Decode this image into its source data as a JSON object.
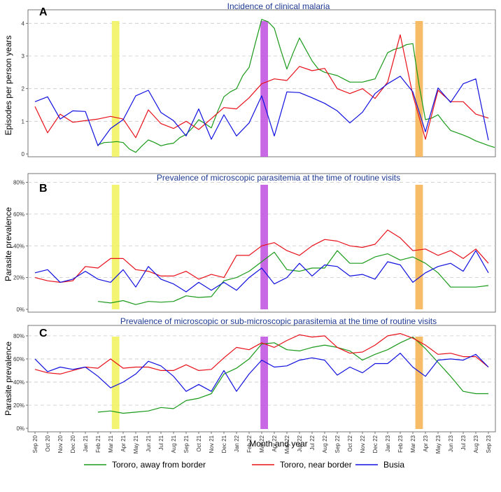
{
  "chart_data": {
    "type": "line",
    "xlabel": "Month and year",
    "months": [
      "Sep 20",
      "Oct 20",
      "Nov 20",
      "Dec 20",
      "Jan 21",
      "Feb 21",
      "Mar 21",
      "Apr 21",
      "May 21",
      "Jun 21",
      "Jul 21",
      "Aug 21",
      "Sep 21",
      "Oct 21",
      "Nov 21",
      "Dec 21",
      "Jan 22",
      "Feb 22",
      "Mar 22",
      "Apr 22",
      "May 22",
      "Jun 22",
      "Jul 22",
      "Aug 22",
      "Sep 22",
      "Oct 22",
      "Nov 22",
      "Dec 22",
      "Jan 23",
      "Feb 23",
      "Mar 23",
      "Apr 23",
      "May 23",
      "Jun 23",
      "Jul 23",
      "Aug 23",
      "Sep 23"
    ],
    "x_tick_labels": [
      "Sep 20",
      "Oct 20",
      "Nov 20",
      "Dec 20",
      "Jan 21",
      "Feb 21",
      "Mar 21",
      "Apr 21",
      "May 21",
      "Jun 21",
      "Jul 21",
      "Aug 21",
      "Sep 21",
      "Oct 21",
      "Nov 21",
      "Dec 21",
      "Jan 22",
      "Feb 22",
      "Mar 22",
      "Apr 22",
      "May 22",
      "Jun 22",
      "Jul 22",
      "Aug 22",
      "Sep 22",
      "Oct 22",
      "Nov 22",
      "Dec 22",
      "Jan 23",
      "Feb 23",
      "Mar 23",
      "Apr 23",
      "May 23",
      "Jun 23",
      "Jul 23",
      "Aug 23",
      "Sep 23"
    ],
    "legend": [
      {
        "name": "Tororo, away from border",
        "color": "#1a9a1a"
      },
      {
        "name": "Tororo, near border",
        "color": "#e8101a"
      },
      {
        "name": "Busia",
        "color": "#1010e0"
      }
    ],
    "highlights": [
      {
        "from": 6.1,
        "to": 6.7,
        "color": "#f2f25a"
      },
      {
        "from": 17.9,
        "to": 18.5,
        "color": "#c04ee0"
      },
      {
        "from": 30.2,
        "to": 30.8,
        "color": "#f5b04c"
      }
    ],
    "panels": [
      {
        "letter": "A",
        "title": "Incidence of clinical malaria",
        "ylabel": "Episodes per person years",
        "ylim": [
          0,
          4.2
        ],
        "yticks": [
          0,
          1,
          2,
          3,
          4
        ],
        "ytick_labels": [
          "0",
          "1",
          "2",
          "3",
          "4"
        ],
        "series": [
          {
            "name": "Tororo, away from border",
            "x": [
              5,
              5.5,
              6,
              6.5,
              7,
              7.5,
              8,
              8.5,
              9,
              9.5,
              10,
              10.5,
              11,
              11.5,
              12,
              12.5,
              13,
              13.5,
              14,
              14.5,
              15,
              15.5,
              16,
              16.5,
              17,
              17.5,
              18,
              18.5,
              19,
              19.5,
              20,
              20.5,
              21,
              21.5,
              22,
              22.5,
              23,
              23.5,
              24,
              24.5,
              25,
              25.5,
              26,
              26.5,
              27,
              27.5,
              28,
              28.5,
              29,
              29.5,
              30,
              30.5,
              31,
              31.5,
              32,
              32.5,
              33,
              33.5,
              34,
              34.5,
              35,
              35.5,
              36,
              36.5
            ],
            "values": [
              0.28,
              0.35,
              0.36,
              0.38,
              0.35,
              0.15,
              0.05,
              0.25,
              0.43,
              0.35,
              0.25,
              0.3,
              0.33,
              0.5,
              0.6,
              0.8,
              1.05,
              0.93,
              0.8,
              1.3,
              1.75,
              1.9,
              2.0,
              2.4,
              2.65,
              3.4,
              4.12,
              4.05,
              3.85,
              3.2,
              2.6,
              3.1,
              3.55,
              3.2,
              2.85,
              2.6,
              2.5,
              2.45,
              2.4,
              2.3,
              2.2,
              2.2,
              2.2,
              2.25,
              2.3,
              2.7,
              3.1,
              3.2,
              3.25,
              3.35,
              3.38,
              2.1,
              1.05,
              1.1,
              1.2,
              0.95,
              0.72,
              0.65,
              0.58,
              0.5,
              0.4,
              0.33,
              0.26,
              0.2
            ]
          },
          {
            "name": "Tororo, near border",
            "x": [
              0,
              1,
              2,
              3,
              4,
              5,
              6,
              7,
              8,
              9,
              10,
              11,
              12,
              13,
              14,
              15,
              16,
              17,
              18,
              19,
              20,
              21,
              22,
              23,
              24,
              25,
              26,
              27,
              28,
              29,
              30,
              31,
              32,
              33,
              34,
              35,
              36
            ],
            "values": [
              1.45,
              0.65,
              1.22,
              0.97,
              1.02,
              1.07,
              1.15,
              1.07,
              0.5,
              1.35,
              0.93,
              0.78,
              1.0,
              0.75,
              1.08,
              1.42,
              1.38,
              1.72,
              2.15,
              2.3,
              2.25,
              2.68,
              2.55,
              2.62,
              2.0,
              1.85,
              2.0,
              1.7,
              2.2,
              3.65,
              1.8,
              0.45,
              1.95,
              1.6,
              1.6,
              1.22,
              1.1
            ]
          },
          {
            "name": "Busia",
            "x": [
              0,
              1,
              2,
              3,
              4,
              5,
              6,
              7,
              8,
              9,
              10,
              11,
              12,
              13,
              14,
              15,
              16,
              17,
              18,
              19,
              20,
              21,
              22,
              23,
              24,
              25,
              26,
              27,
              28,
              29,
              30,
              31,
              32,
              33,
              34,
              35,
              36
            ],
            "values": [
              1.6,
              1.75,
              1.07,
              1.32,
              1.3,
              0.25,
              0.78,
              1.05,
              1.78,
              1.95,
              1.27,
              1.02,
              0.55,
              1.38,
              0.45,
              1.2,
              0.55,
              0.95,
              1.78,
              0.55,
              1.9,
              1.88,
              1.72,
              1.55,
              1.32,
              0.95,
              1.28,
              1.85,
              2.15,
              2.38,
              1.9,
              0.68,
              2.02,
              1.58,
              2.15,
              2.3,
              0.42
            ]
          }
        ]
      },
      {
        "letter": "B",
        "title": "Prevalence of microscopic parasitemia at the time of routine visits",
        "ylabel": "Parasite prevalence",
        "ylim": [
          0,
          0.82
        ],
        "yticks": [
          0,
          0.2,
          0.4,
          0.6,
          0.8
        ],
        "ytick_labels": [
          "0%",
          "20%",
          "40%",
          "60%",
          "80%"
        ],
        "series": [
          {
            "name": "Tororo, away from border",
            "x": [
              5,
              6,
              7,
              8,
              9,
              10,
              11,
              12,
              13,
              14,
              15,
              16,
              17,
              18,
              19,
              20,
              21,
              22,
              23,
              24,
              25,
              26,
              27,
              28,
              29,
              30,
              31,
              32,
              33,
              34,
              35,
              36
            ],
            "values": [
              0.05,
              0.04,
              0.055,
              0.03,
              0.05,
              0.045,
              0.05,
              0.085,
              0.075,
              0.08,
              0.18,
              0.2,
              0.24,
              0.3,
              0.36,
              0.25,
              0.24,
              0.26,
              0.26,
              0.37,
              0.29,
              0.29,
              0.33,
              0.35,
              0.31,
              0.33,
              0.29,
              0.23,
              0.14,
              0.14,
              0.14,
              0.15
            ]
          },
          {
            "name": "Tororo, near border",
            "x": [
              0,
              1,
              2,
              3,
              4,
              5,
              6,
              7,
              8,
              9,
              10,
              11,
              12,
              13,
              14,
              15,
              16,
              17,
              18,
              19,
              20,
              21,
              22,
              23,
              24,
              25,
              26,
              27,
              28,
              29,
              30,
              31,
              32,
              33,
              34,
              35,
              36
            ],
            "values": [
              0.2,
              0.18,
              0.17,
              0.18,
              0.27,
              0.26,
              0.32,
              0.32,
              0.25,
              0.24,
              0.21,
              0.21,
              0.24,
              0.19,
              0.22,
              0.2,
              0.34,
              0.34,
              0.4,
              0.42,
              0.37,
              0.34,
              0.4,
              0.44,
              0.43,
              0.4,
              0.39,
              0.41,
              0.5,
              0.45,
              0.37,
              0.38,
              0.34,
              0.37,
              0.32,
              0.38,
              0.29
            ]
          },
          {
            "name": "Busia",
            "x": [
              0,
              1,
              2,
              3,
              4,
              5,
              6,
              7,
              8,
              9,
              10,
              11,
              12,
              13,
              14,
              15,
              16,
              17,
              18,
              19,
              20,
              21,
              22,
              23,
              24,
              25,
              26,
              27,
              28,
              29,
              30,
              31,
              32,
              33,
              34,
              35,
              36
            ],
            "values": [
              0.23,
              0.25,
              0.17,
              0.19,
              0.24,
              0.19,
              0.17,
              0.25,
              0.14,
              0.27,
              0.19,
              0.16,
              0.11,
              0.17,
              0.12,
              0.17,
              0.12,
              0.2,
              0.26,
              0.16,
              0.2,
              0.29,
              0.21,
              0.28,
              0.27,
              0.21,
              0.22,
              0.19,
              0.3,
              0.28,
              0.17,
              0.23,
              0.27,
              0.29,
              0.24,
              0.37,
              0.23
            ]
          }
        ]
      },
      {
        "letter": "C",
        "title": "Prevalence of microscopic or sub-microscopic parasitemia at the time of routine visits",
        "ylabel": "Parasite prevalence",
        "ylim": [
          0,
          0.86
        ],
        "yticks": [
          0,
          0.2,
          0.4,
          0.6,
          0.8
        ],
        "ytick_labels": [
          "0%",
          "20%",
          "40%",
          "60%",
          "80%"
        ],
        "series": [
          {
            "name": "Tororo, away from border",
            "x": [
              5,
              6,
              7,
              8,
              9,
              10,
              11,
              12,
              13,
              14,
              15,
              16,
              17,
              18,
              19,
              20,
              21,
              22,
              23,
              24,
              25,
              26,
              27,
              28,
              29,
              30,
              31,
              32,
              33,
              34,
              35,
              36
            ],
            "values": [
              0.14,
              0.15,
              0.13,
              0.14,
              0.15,
              0.18,
              0.17,
              0.24,
              0.26,
              0.3,
              0.47,
              0.52,
              0.6,
              0.73,
              0.74,
              0.68,
              0.67,
              0.7,
              0.72,
              0.7,
              0.67,
              0.59,
              0.64,
              0.68,
              0.74,
              0.79,
              0.69,
              0.57,
              0.45,
              0.32,
              0.3,
              0.3
            ]
          },
          {
            "name": "Tororo, near border",
            "x": [
              0,
              1,
              2,
              3,
              4,
              5,
              6,
              7,
              8,
              9,
              10,
              11,
              12,
              13,
              14,
              15,
              16,
              17,
              18,
              19,
              20,
              21,
              22,
              23,
              24,
              25,
              26,
              27,
              28,
              29,
              30,
              31,
              32,
              33,
              34,
              35,
              36
            ],
            "values": [
              0.51,
              0.48,
              0.47,
              0.5,
              0.53,
              0.52,
              0.6,
              0.52,
              0.53,
              0.53,
              0.5,
              0.5,
              0.55,
              0.5,
              0.51,
              0.61,
              0.7,
              0.68,
              0.74,
              0.7,
              0.76,
              0.81,
              0.79,
              0.8,
              0.7,
              0.65,
              0.66,
              0.72,
              0.8,
              0.82,
              0.78,
              0.72,
              0.64,
              0.65,
              0.62,
              0.62,
              0.53
            ]
          },
          {
            "name": "Busia",
            "x": [
              0,
              1,
              2,
              3,
              4,
              5,
              6,
              7,
              8,
              9,
              10,
              11,
              12,
              13,
              14,
              15,
              16,
              17,
              18,
              19,
              20,
              21,
              22,
              23,
              24,
              25,
              26,
              27,
              28,
              29,
              30,
              31,
              32,
              33,
              34,
              35,
              36
            ],
            "values": [
              0.6,
              0.49,
              0.53,
              0.51,
              0.53,
              0.45,
              0.35,
              0.4,
              0.47,
              0.58,
              0.54,
              0.45,
              0.32,
              0.38,
              0.32,
              0.5,
              0.32,
              0.47,
              0.59,
              0.53,
              0.54,
              0.59,
              0.61,
              0.59,
              0.46,
              0.53,
              0.48,
              0.56,
              0.56,
              0.65,
              0.53,
              0.45,
              0.59,
              0.6,
              0.59,
              0.64,
              0.53
            ]
          }
        ]
      }
    ]
  }
}
